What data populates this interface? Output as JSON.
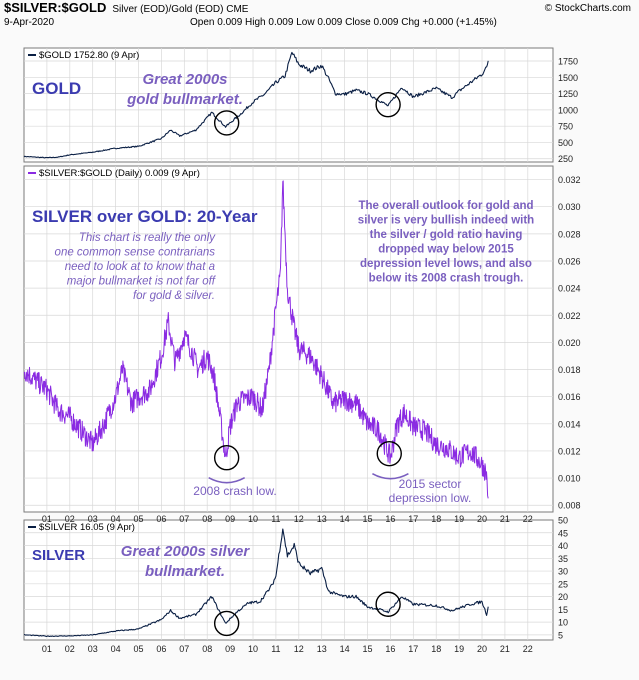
{
  "header": {
    "symbol": "$SILVER:$GOLD",
    "description": "Silver (EOD)/Gold (EOD) CME",
    "brand": "StockCharts.com",
    "date": "9-Apr-2020",
    "ohlc": "Open 0.009  High 0.009  Low 0.009  Close 0.009  Chg +0.000 (+1.45%)"
  },
  "colors": {
    "gold_line": "#0a1f44",
    "ratio_line": "#8a2be2",
    "annotation": "#7a5fbf",
    "title_blue": "#3b3bb0",
    "grid": "#d8d8d8",
    "circle": "#000000"
  },
  "chart_data": [
    {
      "type": "line",
      "panel": "gold",
      "legend": "$GOLD 1752.80 (9 Apr)",
      "title": "GOLD",
      "annotation": "Great 2000s gold bullmarket.",
      "ylim": [
        200,
        1950
      ],
      "yticks": [
        250,
        500,
        750,
        1000,
        1250,
        1500,
        1750
      ],
      "x": [
        2000.0,
        2001.0,
        2001.5,
        2002.0,
        2003.0,
        2004.0,
        2005.0,
        2006.0,
        2006.4,
        2006.8,
        2007.5,
        2008.0,
        2008.2,
        2008.8,
        2009.5,
        2010.0,
        2010.5,
        2011.0,
        2011.4,
        2011.7,
        2012.0,
        2012.5,
        2013.0,
        2013.3,
        2013.6,
        2014.0,
        2014.5,
        2015.0,
        2015.5,
        2015.9,
        2016.5,
        2017.0,
        2018.0,
        2018.7,
        2019.0,
        2019.5,
        2020.0,
        2020.2,
        2020.27
      ],
      "values": [
        285,
        265,
        275,
        310,
        350,
        410,
        440,
        560,
        690,
        600,
        690,
        880,
        960,
        740,
        950,
        1120,
        1240,
        1420,
        1520,
        1880,
        1700,
        1600,
        1680,
        1480,
        1250,
        1240,
        1300,
        1250,
        1150,
        1060,
        1350,
        1200,
        1330,
        1190,
        1290,
        1420,
        1550,
        1650,
        1752.8
      ]
    },
    {
      "type": "line",
      "panel": "ratio",
      "legend": "$SILVER:$GOLD (Daily) 0.009 (9 Apr)",
      "title": "SILVER over GOLD: 20-Year",
      "annotation_left": [
        "This chart is really the only",
        "one common sense contrarians",
        "need to look at to know that a",
        "major bullmarket is not far off",
        "for gold & silver."
      ],
      "annotation_right": [
        "The overall outlook for gold and",
        "silver is very bullish indeed with",
        "the silver / gold ratio having",
        "dropped way below 2015",
        "depression level lows, and also",
        "below its 2008 crash trough."
      ],
      "label_2008": "2008 crash low.",
      "label_2015": [
        "2015 sector",
        "depression low."
      ],
      "ylim": [
        0.0075,
        0.033
      ],
      "yticks": [
        0.008,
        0.01,
        0.012,
        0.014,
        0.016,
        0.018,
        0.02,
        0.022,
        0.024,
        0.026,
        0.028,
        0.03,
        0.032
      ],
      "ytick_labels": [
        "0.008",
        "0.010",
        "0.012",
        "0.014",
        "0.016",
        "0.018",
        "0.020",
        "0.022",
        "0.024",
        "0.026",
        "0.028",
        "0.030",
        "0.032"
      ],
      "x": [
        2000.0,
        2000.5,
        2001.0,
        2001.5,
        2002.0,
        2002.5,
        2003.0,
        2003.5,
        2004.0,
        2004.3,
        2004.7,
        2005.0,
        2005.5,
        2006.0,
        2006.3,
        2006.6,
        2007.0,
        2007.3,
        2007.6,
        2008.0,
        2008.3,
        2008.6,
        2008.8,
        2009.0,
        2009.3,
        2009.6,
        2010.0,
        2010.4,
        2010.7,
        2011.0,
        2011.2,
        2011.3,
        2011.5,
        2011.8,
        2012.0,
        2012.5,
        2013.0,
        2013.5,
        2014.0,
        2014.5,
        2015.0,
        2015.5,
        2016.0,
        2016.3,
        2016.6,
        2017.0,
        2017.5,
        2018.0,
        2018.5,
        2019.0,
        2019.5,
        2020.0,
        2020.15,
        2020.22,
        2020.27
      ],
      "values": [
        0.018,
        0.0172,
        0.0165,
        0.015,
        0.0145,
        0.0135,
        0.0125,
        0.014,
        0.016,
        0.018,
        0.0155,
        0.016,
        0.0165,
        0.019,
        0.0215,
        0.0185,
        0.0205,
        0.0195,
        0.018,
        0.019,
        0.0175,
        0.014,
        0.0115,
        0.0138,
        0.0155,
        0.0158,
        0.016,
        0.015,
        0.018,
        0.0225,
        0.025,
        0.032,
        0.024,
        0.021,
        0.0195,
        0.019,
        0.0175,
        0.0155,
        0.0158,
        0.0155,
        0.014,
        0.0135,
        0.0115,
        0.014,
        0.0148,
        0.0138,
        0.0135,
        0.0125,
        0.0122,
        0.0115,
        0.012,
        0.011,
        0.0105,
        0.01,
        0.0085
      ]
    },
    {
      "type": "line",
      "panel": "silver",
      "legend": "$SILVER 16.05 (9 Apr)",
      "title": "SILVER",
      "annotation": "Great 2000s silver bullmarket.",
      "ylim": [
        3,
        50
      ],
      "yticks": [
        5,
        10,
        15,
        20,
        25,
        30,
        35,
        40,
        45,
        50
      ],
      "x": [
        2000.0,
        2001.0,
        2002.0,
        2003.0,
        2004.0,
        2005.0,
        2006.0,
        2006.4,
        2006.8,
        2007.5,
        2008.0,
        2008.2,
        2008.8,
        2009.3,
        2009.8,
        2010.3,
        2010.8,
        2011.0,
        2011.3,
        2011.5,
        2011.8,
        2012.0,
        2012.5,
        2013.0,
        2013.3,
        2013.6,
        2014.0,
        2014.5,
        2015.0,
        2015.5,
        2015.9,
        2016.5,
        2017.0,
        2018.0,
        2018.7,
        2019.0,
        2019.5,
        2020.0,
        2020.2,
        2020.27
      ],
      "values": [
        5.0,
        4.5,
        4.6,
        5.0,
        6.5,
        7.3,
        11.0,
        14.5,
        11.5,
        13.0,
        18.0,
        20.0,
        9.5,
        14.0,
        17.5,
        18.0,
        24.0,
        28.0,
        47.0,
        36.0,
        40.0,
        33.0,
        29.0,
        31.0,
        22.0,
        21.0,
        20.0,
        20.0,
        16.0,
        15.0,
        14.0,
        20.0,
        17.0,
        16.5,
        14.5,
        15.5,
        17.0,
        18.0,
        13.0,
        16.05
      ]
    }
  ],
  "x_axis": {
    "xlim": [
      2000.0,
      2023.1
    ],
    "ticks": [
      2001,
      2002,
      2003,
      2004,
      2005,
      2006,
      2007,
      2008,
      2009,
      2010,
      2011,
      2012,
      2013,
      2014,
      2015,
      2016,
      2017,
      2018,
      2019,
      2020,
      2021,
      2022
    ],
    "tick_labels": [
      "01",
      "02",
      "03",
      "04",
      "05",
      "06",
      "07",
      "08",
      "09",
      "10",
      "11",
      "12",
      "13",
      "14",
      "15",
      "16",
      "17",
      "18",
      "19",
      "20",
      "21",
      "22"
    ],
    "highlight_years": [
      2009,
      2016
    ]
  }
}
